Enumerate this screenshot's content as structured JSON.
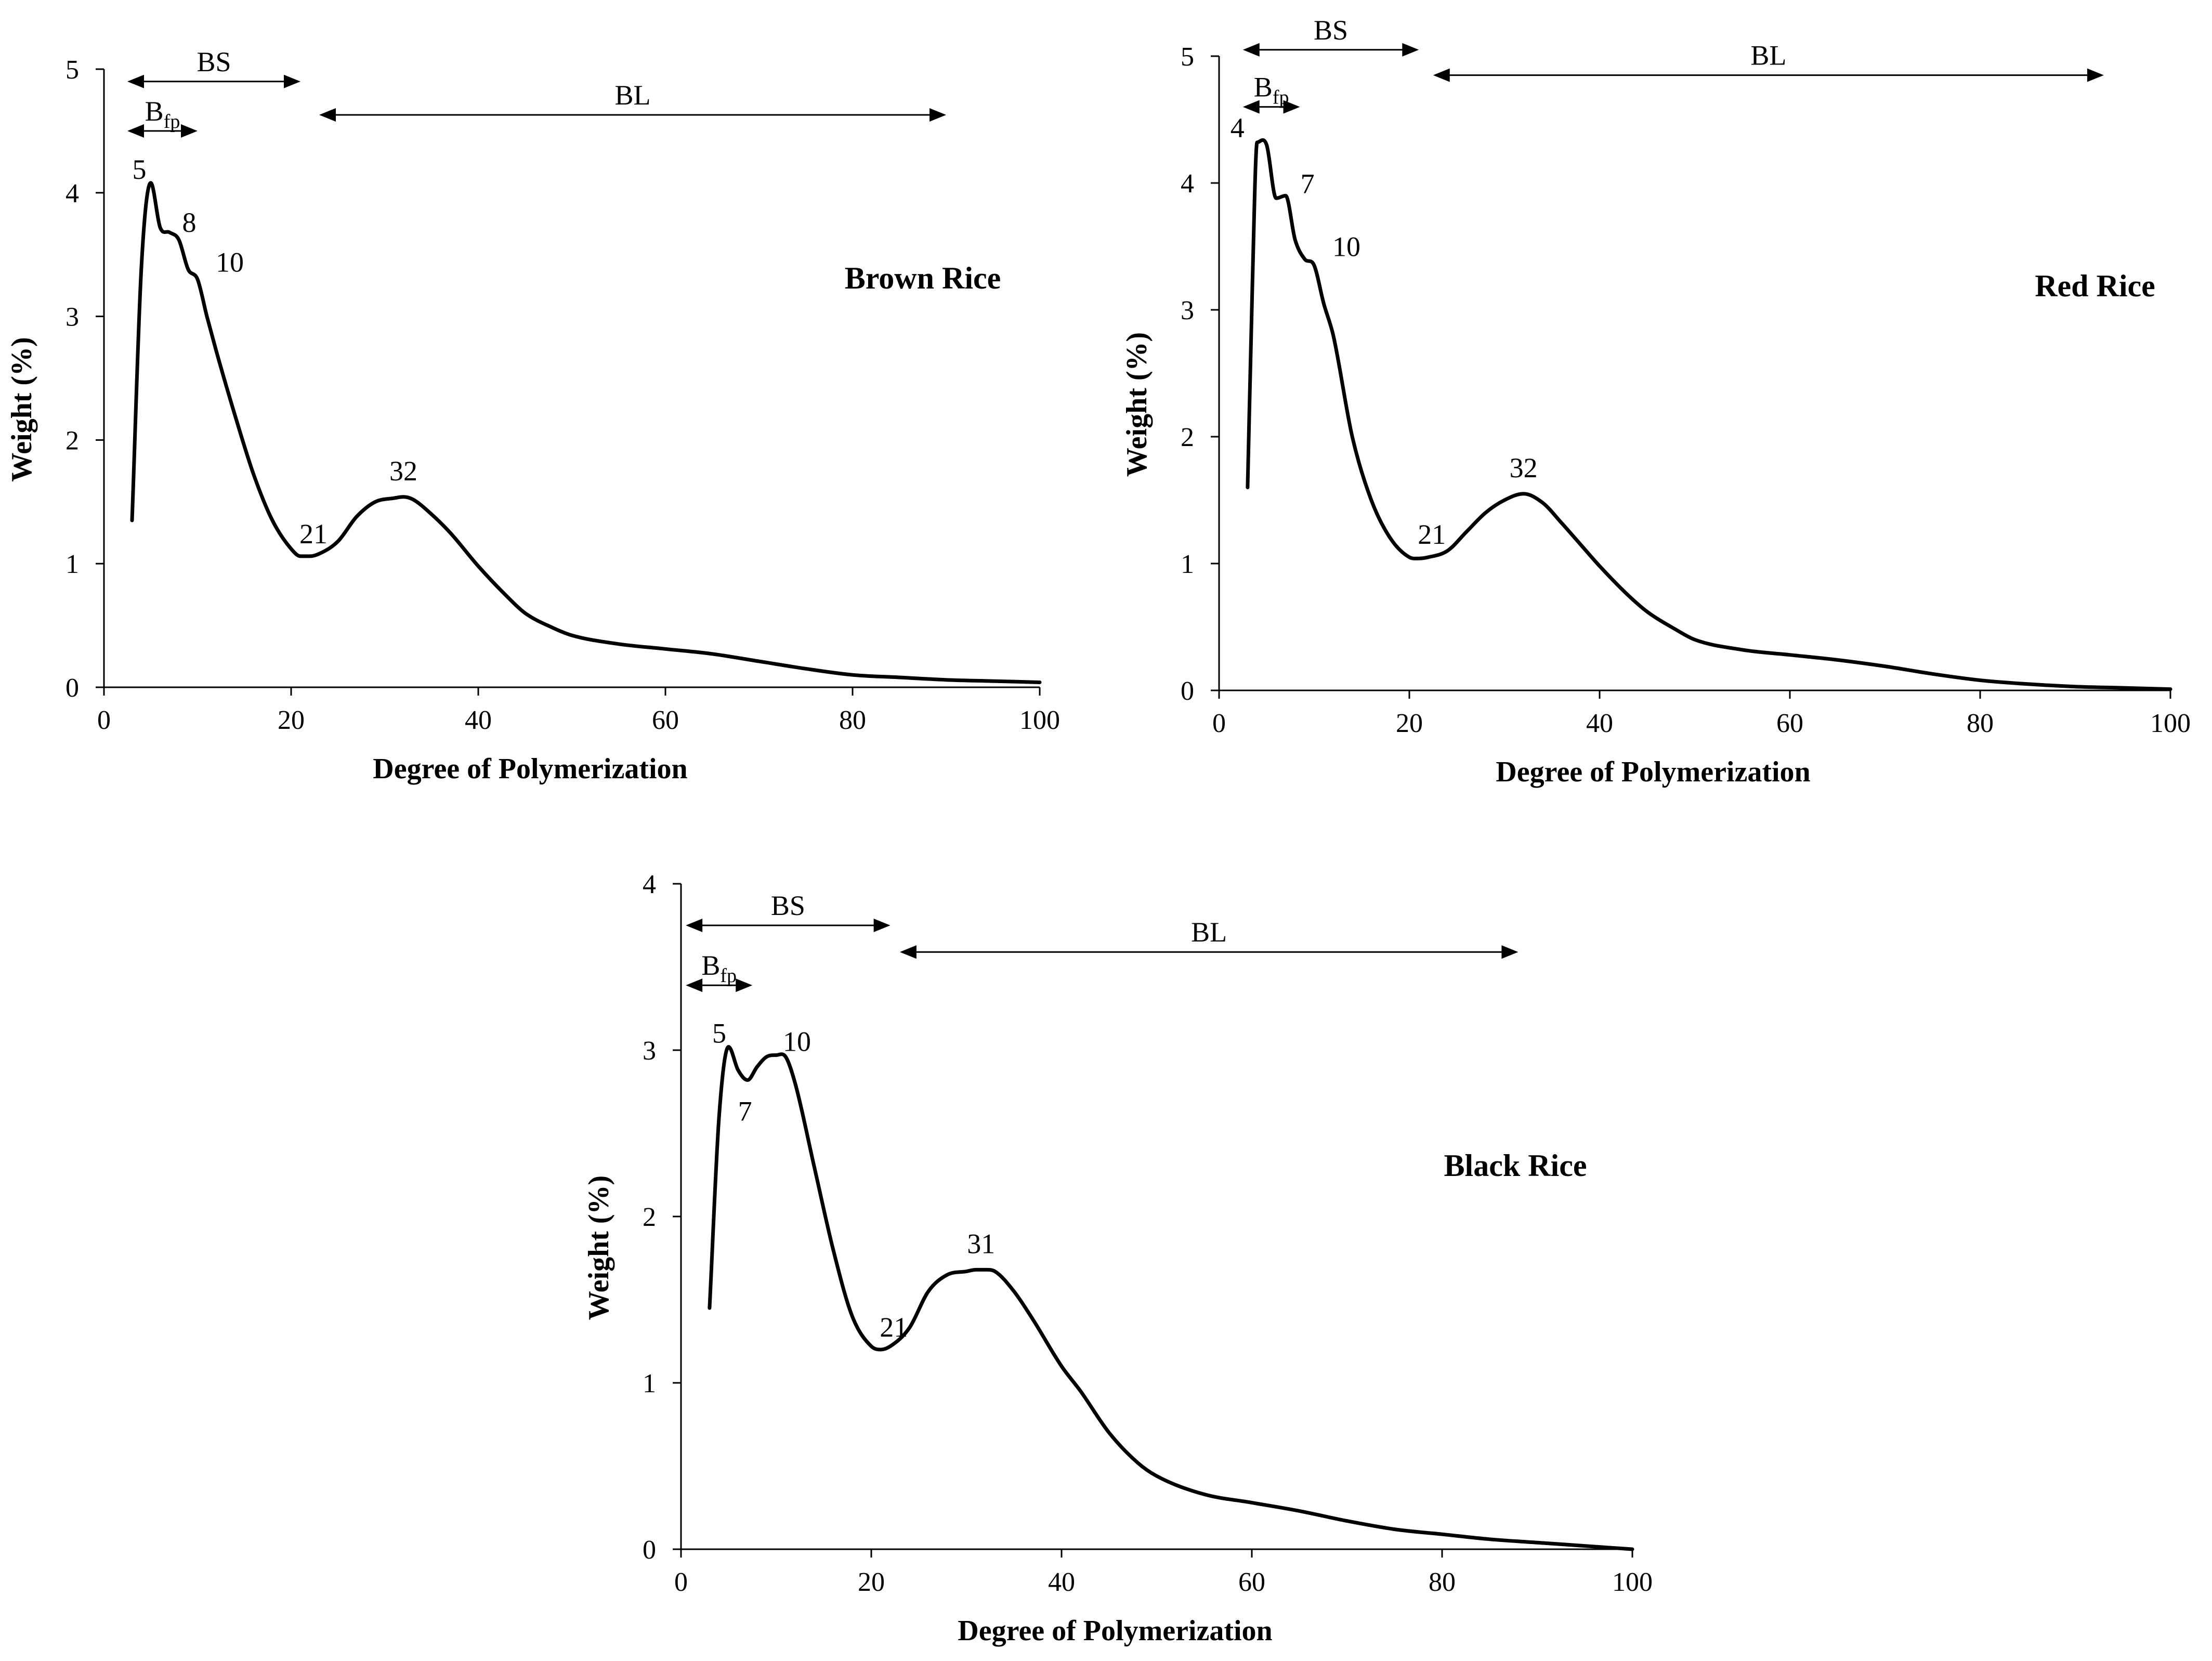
{
  "chart_data": [
    {
      "type": "line",
      "title": "Brown Rice",
      "xlabel": "Degree of Polymerization",
      "ylabel": "Weight (%)",
      "xlim": [
        0,
        100
      ],
      "ylim": [
        0,
        5
      ],
      "xticks": [
        0,
        20,
        40,
        60,
        80,
        100
      ],
      "yticks": [
        0,
        1,
        2,
        3,
        4,
        5
      ],
      "series": [
        {
          "name": "Brown Rice",
          "x": [
            3,
            4,
            5,
            6,
            7,
            8,
            9,
            10,
            11,
            12,
            14,
            16,
            18,
            20,
            21,
            22,
            23,
            25,
            27,
            29,
            31,
            32,
            33,
            35,
            37,
            40,
            43,
            45,
            48,
            50,
            55,
            60,
            65,
            70,
            75,
            80,
            85,
            90,
            95,
            100
          ],
          "y": [
            1.35,
            3.4,
            4.08,
            3.72,
            3.68,
            3.62,
            3.38,
            3.3,
            3.0,
            2.72,
            2.2,
            1.72,
            1.35,
            1.12,
            1.06,
            1.06,
            1.08,
            1.18,
            1.38,
            1.5,
            1.53,
            1.54,
            1.52,
            1.4,
            1.25,
            0.98,
            0.74,
            0.6,
            0.48,
            0.42,
            0.35,
            0.31,
            0.27,
            0.21,
            0.15,
            0.1,
            0.08,
            0.06,
            0.05,
            0.04
          ]
        }
      ],
      "annotations": [
        {
          "text": "5",
          "x": 5,
          "y": 4.08
        },
        {
          "text": "8",
          "x": 8,
          "y": 3.62
        },
        {
          "text": "10",
          "x": 10,
          "y": 3.3
        },
        {
          "text": "21",
          "x": 21,
          "y": 1.06
        },
        {
          "text": "32",
          "x": 32,
          "y": 1.54
        }
      ],
      "spans": [
        {
          "label": "BS",
          "x_start": 2.5,
          "x_end": 21,
          "y": 4.9,
          "heads": "both"
        },
        {
          "label": "B",
          "label_sub": "fp",
          "x_start": 2.5,
          "x_end": 10,
          "y": 4.5,
          "heads": "both"
        },
        {
          "label": "BL",
          "x_start": 23,
          "x_end": 90,
          "y": 4.63,
          "heads": "both"
        }
      ]
    },
    {
      "type": "line",
      "title": "Red Rice",
      "xlabel": "Degree of Polymerization",
      "ylabel": "Weight (%)",
      "xlim": [
        0,
        100
      ],
      "ylim": [
        0,
        5
      ],
      "xticks": [
        0,
        20,
        40,
        60,
        80,
        100
      ],
      "yticks": [
        0,
        1,
        2,
        3,
        4,
        5
      ],
      "series": [
        {
          "name": "Red Rice",
          "x": [
            3,
            3.5,
            4,
            5,
            6,
            7,
            8,
            9,
            10,
            11,
            12,
            14,
            16,
            18,
            20,
            21,
            22,
            24,
            26,
            28,
            30,
            32,
            34,
            36,
            38,
            40,
            43,
            45,
            48,
            50,
            55,
            60,
            65,
            70,
            75,
            80,
            85,
            90,
            95,
            100
          ],
          "y": [
            1.6,
            3.2,
            4.32,
            4.3,
            3.88,
            3.9,
            3.55,
            3.4,
            3.35,
            3.05,
            2.8,
            2.0,
            1.5,
            1.2,
            1.05,
            1.04,
            1.05,
            1.1,
            1.25,
            1.4,
            1.5,
            1.55,
            1.48,
            1.32,
            1.15,
            0.98,
            0.75,
            0.62,
            0.48,
            0.4,
            0.32,
            0.28,
            0.24,
            0.19,
            0.13,
            0.08,
            0.05,
            0.03,
            0.02,
            0.01
          ]
        }
      ],
      "annotations": [
        {
          "text": "4",
          "x": 4,
          "y": 4.32
        },
        {
          "text": "7",
          "x": 7,
          "y": 3.9
        },
        {
          "text": "10",
          "x": 10,
          "y": 3.35
        },
        {
          "text": "21",
          "x": 21,
          "y": 1.04
        },
        {
          "text": "32",
          "x": 32,
          "y": 1.55
        }
      ],
      "spans": [
        {
          "label": "BS",
          "x_start": 2.5,
          "x_end": 21,
          "y": 5.05,
          "heads": "both"
        },
        {
          "label": "B",
          "label_sub": "fp",
          "x_start": 2.5,
          "x_end": 8.5,
          "y": 4.6,
          "heads": "both"
        },
        {
          "label": "BL",
          "x_start": 22.5,
          "x_end": 93,
          "y": 4.85,
          "heads": "both"
        }
      ]
    },
    {
      "type": "line",
      "title": "Black Rice",
      "xlabel": "Degree of Polymerization",
      "ylabel": "Weight (%)",
      "xlim": [
        0,
        100
      ],
      "ylim": [
        0,
        4
      ],
      "xticks": [
        0,
        20,
        40,
        60,
        80,
        100
      ],
      "yticks": [
        0,
        1,
        2,
        3,
        4
      ],
      "series": [
        {
          "name": "Black Rice",
          "x": [
            3,
            4,
            5,
            6,
            7,
            8,
            9,
            10,
            11,
            12,
            14,
            16,
            18,
            20,
            21,
            22,
            24,
            26,
            28,
            30,
            31,
            32,
            33,
            35,
            37,
            40,
            42,
            45,
            48,
            50,
            55,
            60,
            65,
            70,
            75,
            80,
            85,
            90,
            95,
            100
          ],
          "y": [
            1.45,
            2.6,
            3.02,
            2.88,
            2.82,
            2.9,
            2.96,
            2.97,
            2.96,
            2.8,
            2.3,
            1.8,
            1.4,
            1.22,
            1.2,
            1.22,
            1.33,
            1.55,
            1.65,
            1.67,
            1.68,
            1.68,
            1.67,
            1.55,
            1.38,
            1.1,
            0.95,
            0.7,
            0.52,
            0.44,
            0.33,
            0.28,
            0.23,
            0.17,
            0.12,
            0.09,
            0.06,
            0.04,
            0.02,
            0.0
          ]
        }
      ],
      "annotations": [
        {
          "text": "5",
          "x": 5,
          "y": 3.02
        },
        {
          "text": "7",
          "x": 7,
          "y": 2.82
        },
        {
          "text": "10",
          "x": 10,
          "y": 2.97
        },
        {
          "text": "21",
          "x": 21,
          "y": 1.2
        },
        {
          "text": "31",
          "x": 31,
          "y": 1.68
        }
      ],
      "spans": [
        {
          "label": "BS",
          "x_start": 0.5,
          "x_end": 22,
          "y": 3.75,
          "heads": "both"
        },
        {
          "label": "B",
          "label_sub": "fp",
          "x_start": 0.5,
          "x_end": 7.5,
          "y": 3.39,
          "heads": "both"
        },
        {
          "label": "BL",
          "x_start": 23,
          "x_end": 88,
          "y": 3.59,
          "heads": "both"
        }
      ]
    }
  ]
}
